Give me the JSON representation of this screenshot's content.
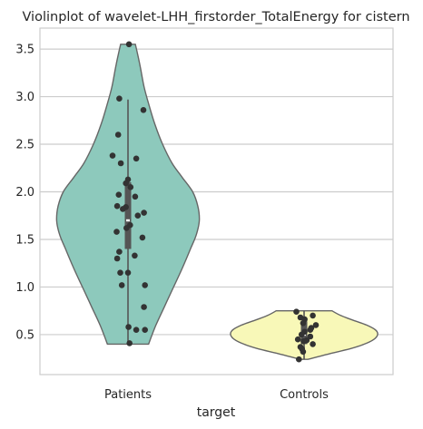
{
  "chart_data": {
    "type": "violin",
    "title": "Violinplot of wavelet-LHH_firstorder_TotalEnergy for cistern",
    "xlabel": "target",
    "ylabel": "",
    "ylim": [
      0.08,
      3.72
    ],
    "yticks": [
      0.5,
      1.0,
      1.5,
      2.0,
      2.5,
      3.0,
      3.5
    ],
    "ytick_labels": [
      "0.5",
      "1.0",
      "1.5",
      "2.0",
      "2.5",
      "3.0",
      "3.5"
    ],
    "grid": true,
    "categories": [
      "Patients",
      "Controls"
    ],
    "series": [
      {
        "category": "Patients",
        "fill": "#8dc9bc",
        "range": [
          0.4,
          3.55
        ],
        "whisker": [
          0.4,
          2.97
        ],
        "quartiles": [
          1.4,
          1.7,
          2.1
        ],
        "median": 1.7,
        "profile": [
          [
            0.4,
            0.28
          ],
          [
            0.6,
            0.38
          ],
          [
            0.8,
            0.5
          ],
          [
            1.0,
            0.62
          ],
          [
            1.2,
            0.74
          ],
          [
            1.4,
            0.85
          ],
          [
            1.55,
            0.93
          ],
          [
            1.7,
            0.97
          ],
          [
            1.85,
            0.95
          ],
          [
            2.0,
            0.88
          ],
          [
            2.15,
            0.74
          ],
          [
            2.3,
            0.6
          ],
          [
            2.5,
            0.47
          ],
          [
            2.7,
            0.37
          ],
          [
            2.9,
            0.29
          ],
          [
            3.1,
            0.22
          ],
          [
            3.3,
            0.17
          ],
          [
            3.45,
            0.13
          ],
          [
            3.55,
            0.1
          ]
        ],
        "points": [
          3.55,
          2.98,
          2.86,
          2.6,
          2.38,
          2.35,
          2.3,
          2.13,
          2.09,
          2.05,
          1.97,
          1.95,
          1.85,
          1.84,
          1.82,
          1.78,
          1.75,
          1.65,
          1.62,
          1.58,
          1.52,
          1.37,
          1.33,
          1.3,
          1.15,
          1.15,
          1.02,
          1.02,
          0.79,
          0.58,
          0.55,
          0.55,
          0.41
        ],
        "jitter": [
          0.02,
          -0.17,
          0.3,
          -0.19,
          -0.3,
          0.16,
          -0.14,
          0.0,
          -0.04,
          0.05,
          -0.18,
          0.14,
          -0.21,
          -0.04,
          -0.1,
          0.31,
          0.19,
          0.04,
          -0.03,
          -0.22,
          0.28,
          -0.17,
          0.13,
          -0.21,
          -0.15,
          0.0,
          -0.12,
          0.33,
          0.31,
          0.01,
          0.16,
          0.33,
          0.03
        ]
      },
      {
        "category": "Controls",
        "fill": "#f8f8b8",
        "range": [
          0.24,
          0.75
        ],
        "whisker": [
          0.24,
          0.75
        ],
        "quartiles": [
          0.4,
          0.5,
          0.64
        ],
        "median": 0.5,
        "profile": [
          [
            0.24,
            0.05
          ],
          [
            0.3,
            0.35
          ],
          [
            0.35,
            0.62
          ],
          [
            0.4,
            0.82
          ],
          [
            0.45,
            0.95
          ],
          [
            0.5,
            1.0
          ],
          [
            0.55,
            0.97
          ],
          [
            0.6,
            0.85
          ],
          [
            0.65,
            0.67
          ],
          [
            0.7,
            0.5
          ],
          [
            0.75,
            0.38
          ]
        ],
        "points": [
          0.74,
          0.7,
          0.68,
          0.66,
          0.62,
          0.6,
          0.57,
          0.55,
          0.53,
          0.5,
          0.48,
          0.45,
          0.44,
          0.43,
          0.4,
          0.37,
          0.35,
          0.32,
          0.24
        ],
        "jitter": [
          -0.15,
          0.17,
          -0.07,
          0.01,
          -0.02,
          0.23,
          0.14,
          0.12,
          0.01,
          -0.05,
          0.12,
          -0.12,
          0.05,
          -0.01,
          0.17,
          -0.07,
          -0.04,
          -0.02,
          -0.1
        ]
      }
    ]
  }
}
